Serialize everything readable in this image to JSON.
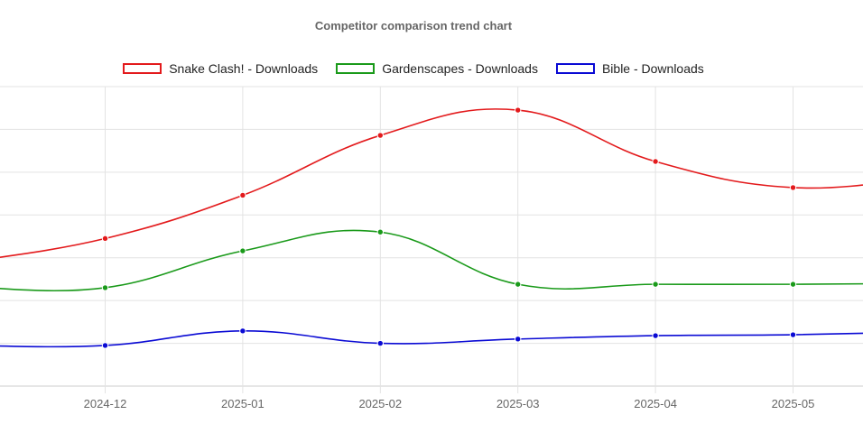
{
  "chart_data": {
    "type": "line",
    "title": "Competitor comparison trend chart",
    "xlabel": "",
    "ylabel": "",
    "y_tick_labels_visible": false,
    "y_units_note": "y axis labels are cropped off-screen; values expressed in gridline units (0 = bottom axis, each horizontal gridline = 1)",
    "ylim": [
      0,
      7
    ],
    "grid": true,
    "legend_position": "top",
    "categories": [
      "2024-12",
      "2025-01",
      "2025-02",
      "2025-03",
      "2025-04",
      "2025-05"
    ],
    "series": [
      {
        "name": "Snake Clash! - Downloads",
        "color": "#e31a1c",
        "values": [
          3.45,
          4.46,
          5.86,
          6.45,
          5.25,
          4.64
        ]
      },
      {
        "name": "Gardenscapes - Downloads",
        "color": "#1a9a1a",
        "values": [
          2.3,
          3.16,
          3.6,
          2.38,
          2.38,
          2.38
        ]
      },
      {
        "name": "Bible - Downloads",
        "color": "#0a0ad4",
        "values": [
          0.95,
          1.29,
          1.0,
          1.1,
          1.18,
          1.2
        ]
      }
    ],
    "offscreen_edges": {
      "left_values": [
        2.9,
        2.32,
        0.95
      ],
      "right_values": [
        4.9,
        2.4,
        1.27
      ]
    }
  }
}
